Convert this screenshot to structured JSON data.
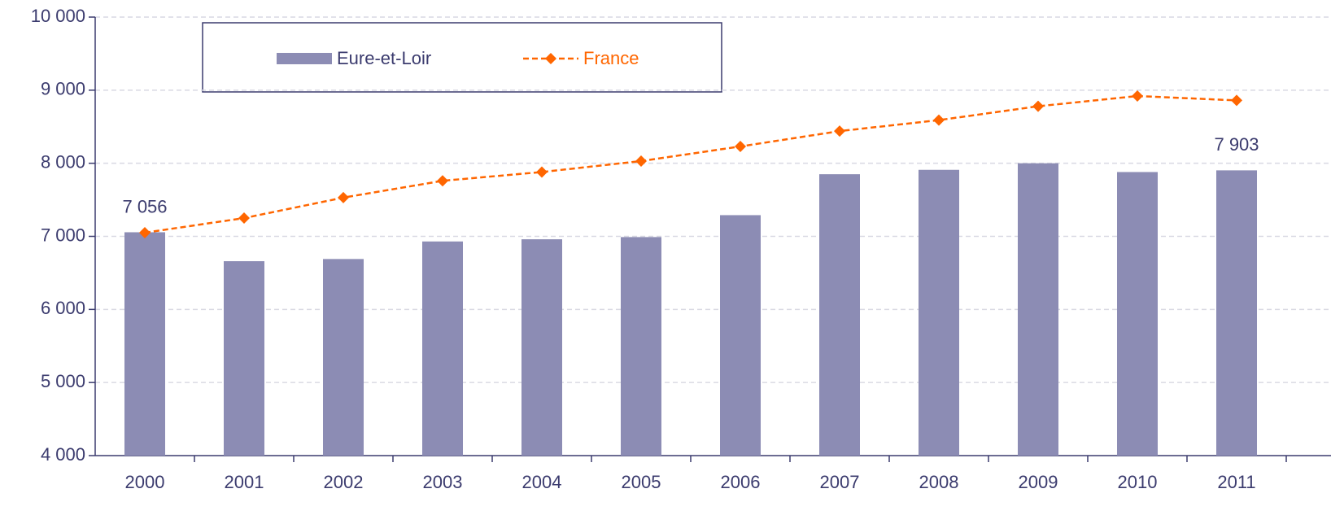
{
  "chart_data": {
    "type": "bar_line",
    "categories": [
      "2000",
      "2001",
      "2002",
      "2003",
      "2004",
      "2005",
      "2006",
      "2007",
      "2008",
      "2009",
      "2010",
      "2011"
    ],
    "series": [
      {
        "name": "Eure-et-Loir",
        "type": "bar",
        "color": "#8c8cb4",
        "values": [
          7056,
          6660,
          6690,
          6930,
          6960,
          6990,
          7290,
          7850,
          7910,
          8000,
          7880,
          7903
        ],
        "value_labels": [
          "7 056",
          null,
          null,
          null,
          null,
          null,
          null,
          null,
          null,
          null,
          null,
          "7 903"
        ]
      },
      {
        "name": "France",
        "type": "line",
        "color": "#ff6600",
        "values": [
          7050,
          7250,
          7530,
          7760,
          7880,
          8030,
          8230,
          8440,
          8590,
          8780,
          8920,
          8860
        ]
      }
    ],
    "ylim": [
      4000,
      10000
    ],
    "yticks": [
      {
        "value": 4000,
        "label": "4 000"
      },
      {
        "value": 5000,
        "label": "5 000"
      },
      {
        "value": 6000,
        "label": "6 000"
      },
      {
        "value": 7000,
        "label": "7 000"
      },
      {
        "value": 8000,
        "label": "8 000"
      },
      {
        "value": 9000,
        "label": "9 000"
      },
      {
        "value": 10000,
        "label": "10 000"
      }
    ],
    "grid": true,
    "legend": "top-left"
  }
}
